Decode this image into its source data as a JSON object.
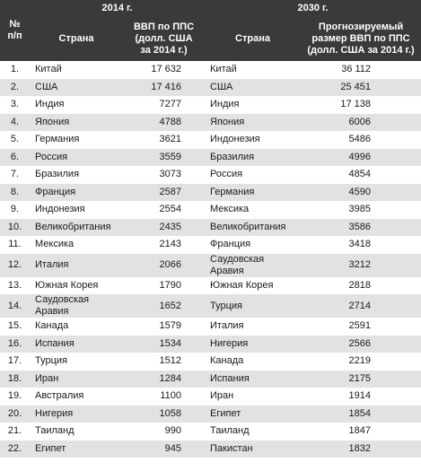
{
  "header": {
    "year_2014": "2014 г.",
    "year_2030": "2030 г.",
    "num": "№\nп/п",
    "country_2014": "Страна",
    "gdp_2014": "ВВП по ППС\n(долл. США\nза 2014 г.)",
    "country_2030": "Страна",
    "gdp_2030": "Прогнозируемый\nразмер ВВП по ППС\n(долл. США за 2014 г.)"
  },
  "table": {
    "rows": [
      [
        "1.",
        "Китай",
        "17 632",
        "Китай",
        "36 112"
      ],
      [
        "2.",
        "США",
        "17 416",
        "США",
        "25 451"
      ],
      [
        "3.",
        "Индия",
        "7277",
        "Индия",
        "17 138"
      ],
      [
        "4.",
        "Япония",
        "4788",
        "Япония",
        "6006"
      ],
      [
        "5.",
        "Германия",
        "3621",
        "Индонезия",
        "5486"
      ],
      [
        "6.",
        "Россия",
        "3559",
        "Бразилия",
        "4996"
      ],
      [
        "7.",
        "Бразилия",
        "3073",
        "Россия",
        "4854"
      ],
      [
        "8.",
        "Франция",
        "2587",
        "Германия",
        "4590"
      ],
      [
        "9.",
        "Индонезия",
        "2554",
        "Мексика",
        "3985"
      ],
      [
        "10.",
        "Великобритания",
        "2435",
        "Великобритания",
        "3586"
      ],
      [
        "11.",
        "Мексика",
        "2143",
        "Франция",
        "3418"
      ],
      [
        "12.",
        "Италия",
        "2066",
        "Саудовская\nАравия",
        "3212"
      ],
      [
        "13.",
        "Южная Корея",
        "1790",
        "Южная Корея",
        "2818"
      ],
      [
        "14.",
        "Саудовская\nАравия",
        "1652",
        "Турция",
        "2714"
      ],
      [
        "15.",
        "Канада",
        "1579",
        "Италия",
        "2591"
      ],
      [
        "16.",
        "Испания",
        "1534",
        "Нигерия",
        "2566"
      ],
      [
        "17.",
        "Турция",
        "1512",
        "Канада",
        "2219"
      ],
      [
        "18.",
        "Иран",
        "1284",
        "Испания",
        "2175"
      ],
      [
        "19.",
        "Австралия",
        "1100",
        "Иран",
        "1914"
      ],
      [
        "20.",
        "Нигерия",
        "1058",
        "Египет",
        "1854"
      ],
      [
        "21.",
        "Таиланд",
        "990",
        "Таиланд",
        "1847"
      ],
      [
        "22.",
        "Египет",
        "945",
        "Пакистан",
        "1832"
      ]
    ]
  }
}
